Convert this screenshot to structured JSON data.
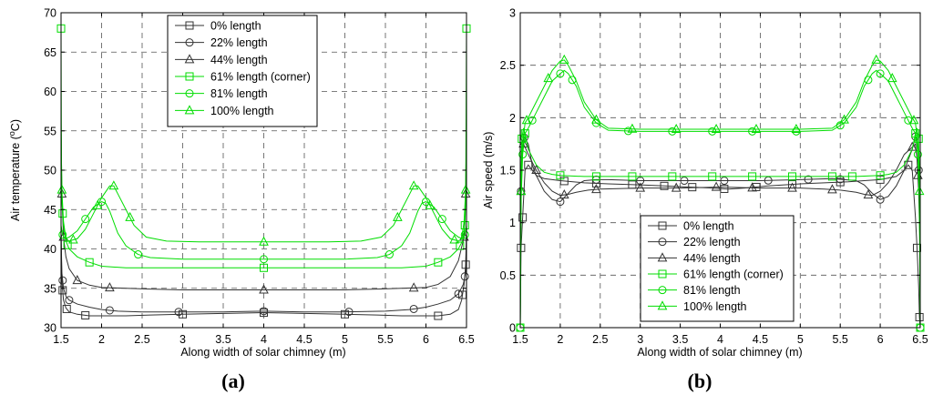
{
  "colors": {
    "black_series": "#333333",
    "green_series": "#00dd00",
    "grid": "#555555"
  },
  "chart_data": [
    {
      "type": "line",
      "panel_label": "(a)",
      "xlabel": "Along width of solar chimney (m)",
      "ylabel": "Air temperature (",
      "ylabel_unit_sup": "o",
      "ylabel_unit_tail": "C)",
      "xlim": [
        1.5,
        6.5
      ],
      "ylim": [
        30,
        70
      ],
      "xticks": [
        "1.5",
        "2",
        "2.5",
        "3",
        "3.5",
        "4",
        "4.5",
        "5",
        "5.5",
        "6",
        "6.5"
      ],
      "yticks": [
        "30",
        "35",
        "40",
        "45",
        "50",
        "55",
        "60",
        "65",
        "70"
      ],
      "grid": true,
      "legend_position": "top-center",
      "series": [
        {
          "name": "0% length",
          "color": "black",
          "marker": "square",
          "x": [
            1.5,
            1.51,
            1.53,
            1.56,
            1.6,
            1.7,
            1.85,
            2.0,
            2.3,
            2.6,
            3.0,
            3.5,
            4.0,
            4.5,
            5.0,
            5.4,
            5.7,
            6.0,
            6.15,
            6.3,
            6.4,
            6.44,
            6.47,
            6.49,
            6.5
          ],
          "y": [
            42,
            36,
            33.5,
            32.5,
            32,
            31.7,
            31.5,
            31.5,
            31.5,
            31.6,
            31.7,
            31.8,
            31.9,
            31.8,
            31.7,
            31.6,
            31.5,
            31.5,
            31.5,
            31.7,
            32.3,
            33.5,
            35.5,
            38,
            42
          ],
          "markers_x": [
            1.52,
            1.57,
            1.8,
            3.0,
            4.0,
            5.0,
            6.15,
            6.45,
            6.49
          ]
        },
        {
          "name": "22% length",
          "color": "black",
          "marker": "circle",
          "x": [
            1.5,
            1.51,
            1.53,
            1.56,
            1.6,
            1.7,
            1.85,
            2.0,
            2.2,
            2.5,
            3.0,
            3.5,
            4.0,
            4.5,
            5.0,
            5.5,
            5.8,
            6.0,
            6.15,
            6.3,
            6.4,
            6.46,
            6.49,
            6.5
          ],
          "y": [
            42,
            37,
            35,
            34,
            33.5,
            33,
            32.6,
            32.3,
            32.1,
            32,
            32,
            32,
            32.1,
            32,
            32,
            32.1,
            32.3,
            32.6,
            33,
            33.5,
            34.3,
            35.5,
            37,
            42
          ],
          "markers_x": [
            1.52,
            1.6,
            2.1,
            2.95,
            4.0,
            5.05,
            5.85,
            6.4,
            6.48
          ]
        },
        {
          "name": "44% length",
          "color": "black",
          "marker": "triangle",
          "x": [
            1.5,
            1.51,
            1.53,
            1.56,
            1.6,
            1.7,
            1.85,
            2.0,
            2.3,
            2.6,
            3.0,
            3.5,
            4.0,
            4.5,
            5.0,
            5.4,
            5.7,
            6.0,
            6.15,
            6.3,
            6.4,
            6.47,
            6.49,
            6.5
          ],
          "y": [
            56,
            47,
            41.5,
            39,
            37.5,
            36,
            35.4,
            35.1,
            35,
            34.9,
            34.8,
            34.8,
            34.8,
            34.8,
            34.8,
            34.9,
            35,
            35.1,
            35.5,
            36.5,
            38.5,
            41.5,
            47,
            56
          ],
          "markers_x": [
            1.51,
            1.53,
            1.7,
            2.1,
            4.0,
            5.85,
            6.47,
            6.49
          ]
        },
        {
          "name": "61% length (corner)",
          "color": "green",
          "marker": "square",
          "x": [
            1.5,
            1.505,
            1.51,
            1.53,
            1.56,
            1.6,
            1.7,
            1.85,
            2.0,
            2.3,
            2.6,
            3.0,
            3.5,
            4.0,
            4.5,
            5.0,
            5.4,
            5.7,
            6.0,
            6.15,
            6.3,
            6.4,
            6.45,
            6.48,
            6.49,
            6.5
          ],
          "y": [
            68,
            51,
            46,
            43,
            41,
            40,
            39,
            38.3,
            37.8,
            37.6,
            37.6,
            37.6,
            37.6,
            37.6,
            37.6,
            37.6,
            37.6,
            37.6,
            37.8,
            38.3,
            39,
            40,
            41,
            43,
            46,
            68
          ],
          "markers_x": [
            1.5,
            1.52,
            1.58,
            1.85,
            4.0,
            6.15,
            6.42,
            6.48,
            6.5
          ]
        },
        {
          "name": "81% length",
          "color": "green",
          "marker": "circle",
          "x": [
            1.5,
            1.52,
            1.55,
            1.6,
            1.7,
            1.8,
            1.9,
            2.0,
            2.05,
            2.1,
            2.2,
            2.3,
            2.45,
            2.6,
            3.0,
            3.5,
            4.0,
            4.5,
            5.0,
            5.4,
            5.55,
            5.7,
            5.8,
            5.9,
            5.95,
            6.0,
            6.1,
            6.2,
            6.3,
            6.4,
            6.45,
            6.48,
            6.5
          ],
          "y": [
            43,
            41.8,
            41.3,
            41.5,
            42.3,
            43.8,
            45.3,
            46,
            45.8,
            44.8,
            42,
            40.4,
            39.3,
            38.9,
            38.7,
            38.7,
            38.7,
            38.7,
            38.7,
            38.9,
            39.3,
            40.4,
            42,
            44.8,
            45.8,
            46,
            45.3,
            43.8,
            42.3,
            41.5,
            41.3,
            41.8,
            43
          ],
          "markers_x": [
            1.52,
            1.8,
            2.0,
            2.45,
            4.0,
            5.55,
            6.0,
            6.2,
            6.48
          ]
        },
        {
          "name": "100% length",
          "color": "green",
          "marker": "triangle",
          "x": [
            1.5,
            1.51,
            1.53,
            1.56,
            1.6,
            1.7,
            1.8,
            1.9,
            2.0,
            2.1,
            2.15,
            2.2,
            2.3,
            2.4,
            2.55,
            2.8,
            3.2,
            3.6,
            4.0,
            4.4,
            4.8,
            5.2,
            5.45,
            5.6,
            5.7,
            5.8,
            5.85,
            5.9,
            6.0,
            6.1,
            6.2,
            6.3,
            6.4,
            6.44,
            6.47,
            6.49,
            6.5
          ],
          "y": [
            55,
            47.5,
            43.5,
            41.3,
            41,
            41.3,
            42.5,
            44.5,
            46.5,
            48,
            48,
            47,
            45,
            43,
            41.5,
            41,
            40.9,
            40.9,
            40.9,
            40.9,
            40.9,
            41,
            41.5,
            43,
            45,
            47,
            48,
            48,
            46.5,
            44.5,
            42.5,
            41.3,
            41,
            41.3,
            43.5,
            47.5,
            55
          ],
          "markers_x": [
            1.51,
            1.65,
            1.95,
            2.15,
            2.35,
            4.0,
            5.65,
            5.85,
            6.05,
            6.35,
            6.49
          ]
        }
      ]
    },
    {
      "type": "line",
      "panel_label": "(b)",
      "xlabel": "Along width of solar chimney (m)",
      "ylabel": "Air speed (m/s)",
      "xlim": [
        1.5,
        6.5
      ],
      "ylim": [
        0,
        3
      ],
      "xticks": [
        "1.5",
        "2",
        "2.5",
        "3",
        "3.5",
        "4",
        "4.5",
        "5",
        "5.5",
        "6",
        "6.5"
      ],
      "yticks": [
        "0",
        "0.5",
        "1",
        "1.5",
        "2",
        "2.5",
        "3"
      ],
      "grid": true,
      "legend_position": "bottom-center",
      "series": [
        {
          "name": "0% length",
          "color": "black",
          "marker": "square",
          "x": [
            1.5,
            1.51,
            1.53,
            1.56,
            1.6,
            1.65,
            1.7,
            1.8,
            1.9,
            2.0,
            2.3,
            2.6,
            3.0,
            3.3,
            3.6,
            3.9,
            4.1,
            4.3,
            4.6,
            5.0,
            5.3,
            5.6,
            5.8,
            6.0,
            6.2,
            6.3,
            6.35,
            6.4,
            6.44,
            6.46,
            6.48,
            6.49,
            6.5
          ],
          "y": [
            0,
            0.76,
            1.05,
            1.5,
            1.55,
            1.5,
            1.45,
            1.42,
            1.41,
            1.4,
            1.38,
            1.37,
            1.36,
            1.35,
            1.34,
            1.33,
            1.32,
            1.33,
            1.35,
            1.37,
            1.38,
            1.39,
            1.4,
            1.41,
            1.44,
            1.5,
            1.55,
            1.5,
            1.05,
            0.76,
            0.4,
            0.1,
            0
          ],
          "markers_x": [
            1.5,
            1.51,
            1.53,
            1.6,
            2.05,
            2.45,
            2.9,
            3.3,
            3.65,
            4.05,
            4.45,
            4.9,
            5.5,
            6.0,
            6.35,
            6.46,
            6.49
          ]
        },
        {
          "name": "22% length",
          "color": "black",
          "marker": "circle",
          "x": [
            1.5,
            1.51,
            1.52,
            1.54,
            1.56,
            1.6,
            1.65,
            1.7,
            1.8,
            1.9,
            2.0,
            2.1,
            2.2,
            2.3,
            2.45,
            2.6,
            3.0,
            3.5,
            4.0,
            4.5,
            5.0,
            5.4,
            5.7,
            5.8,
            5.9,
            6.0,
            6.1,
            6.2,
            6.3,
            6.4,
            6.44,
            6.46,
            6.48,
            6.49,
            6.5
          ],
          "y": [
            0.75,
            1.3,
            1.65,
            1.82,
            1.8,
            1.75,
            1.55,
            1.45,
            1.3,
            1.22,
            1.2,
            1.28,
            1.36,
            1.4,
            1.41,
            1.41,
            1.4,
            1.4,
            1.4,
            1.4,
            1.41,
            1.42,
            1.4,
            1.36,
            1.28,
            1.22,
            1.25,
            1.35,
            1.5,
            1.7,
            1.82,
            1.8,
            1.5,
            1.2,
            0.75
          ],
          "markers_x": [
            1.51,
            1.55,
            2.0,
            2.45,
            3.0,
            3.55,
            4.05,
            4.6,
            5.1,
            5.5,
            6.0,
            6.44,
            6.48
          ]
        },
        {
          "name": "44% length",
          "color": "black",
          "marker": "triangle",
          "x": [
            1.5,
            1.51,
            1.52,
            1.54,
            1.56,
            1.6,
            1.7,
            1.8,
            1.9,
            2.0,
            2.1,
            2.2,
            2.35,
            2.5,
            3.0,
            3.5,
            4.0,
            4.5,
            5.0,
            5.3,
            5.5,
            5.7,
            5.8,
            5.9,
            6.0,
            6.1,
            6.2,
            6.3,
            6.4,
            6.44,
            6.46,
            6.48,
            6.49,
            6.5
          ],
          "y": [
            0.75,
            1.3,
            1.6,
            1.75,
            1.72,
            1.65,
            1.5,
            1.38,
            1.3,
            1.26,
            1.27,
            1.29,
            1.31,
            1.32,
            1.33,
            1.33,
            1.34,
            1.33,
            1.33,
            1.32,
            1.31,
            1.29,
            1.27,
            1.26,
            1.3,
            1.38,
            1.5,
            1.65,
            1.72,
            1.75,
            1.6,
            1.3,
            1.0,
            0.75
          ],
          "markers_x": [
            1.51,
            1.54,
            1.7,
            2.05,
            2.45,
            3.0,
            3.45,
            3.95,
            4.4,
            4.9,
            5.4,
            5.85,
            6.4,
            6.47
          ]
        },
        {
          "name": "61% length (corner)",
          "color": "green",
          "marker": "square",
          "x": [
            1.5,
            1.505,
            1.51,
            1.52,
            1.54,
            1.56,
            1.6,
            1.7,
            1.8,
            1.9,
            2.0,
            2.3,
            2.6,
            3.0,
            3.5,
            4.0,
            4.5,
            5.0,
            5.4,
            5.7,
            6.0,
            6.1,
            6.2,
            6.3,
            6.4,
            6.44,
            6.46,
            6.48,
            6.49,
            6.495,
            6.5
          ],
          "y": [
            0,
            0.75,
            1.5,
            1.8,
            1.9,
            1.85,
            1.7,
            1.55,
            1.48,
            1.46,
            1.45,
            1.44,
            1.44,
            1.44,
            1.44,
            1.44,
            1.44,
            1.44,
            1.44,
            1.44,
            1.45,
            1.46,
            1.48,
            1.55,
            1.7,
            1.85,
            1.9,
            1.8,
            1.5,
            0.75,
            0
          ],
          "markers_x": [
            1.5,
            1.52,
            1.56,
            2.0,
            2.45,
            2.9,
            3.4,
            3.9,
            4.4,
            4.9,
            5.4,
            5.65,
            6.0,
            6.44,
            6.48,
            6.5
          ]
        },
        {
          "name": "81% length",
          "color": "green",
          "marker": "circle",
          "x": [
            1.5,
            1.51,
            1.53,
            1.56,
            1.6,
            1.7,
            1.8,
            1.9,
            2.0,
            2.05,
            2.1,
            2.2,
            2.3,
            2.45,
            2.6,
            3.0,
            3.5,
            4.0,
            4.5,
            5.0,
            5.4,
            5.55,
            5.7,
            5.8,
            5.9,
            5.95,
            6.0,
            6.1,
            6.2,
            6.3,
            6.4,
            6.44,
            6.47,
            6.49,
            6.5
          ],
          "y": [
            0,
            1.2,
            1.65,
            1.85,
            1.9,
            2.05,
            2.2,
            2.35,
            2.42,
            2.45,
            2.42,
            2.3,
            2.1,
            1.95,
            1.88,
            1.87,
            1.87,
            1.87,
            1.87,
            1.87,
            1.88,
            1.95,
            2.1,
            2.3,
            2.42,
            2.45,
            2.42,
            2.35,
            2.2,
            2.05,
            1.9,
            1.85,
            1.65,
            1.2,
            0
          ],
          "markers_x": [
            1.5,
            1.53,
            1.65,
            2.0,
            2.15,
            2.45,
            2.85,
            3.4,
            3.9,
            4.4,
            4.95,
            5.5,
            5.85,
            6.0,
            6.35,
            6.47,
            6.5
          ]
        },
        {
          "name": "100% length",
          "color": "green",
          "marker": "triangle",
          "x": [
            1.5,
            1.51,
            1.53,
            1.56,
            1.6,
            1.7,
            1.8,
            1.9,
            2.0,
            2.05,
            2.1,
            2.2,
            2.3,
            2.45,
            2.6,
            3.0,
            3.5,
            4.0,
            4.5,
            5.0,
            5.4,
            5.55,
            5.7,
            5.8,
            5.9,
            5.95,
            6.0,
            6.1,
            6.2,
            6.3,
            6.4,
            6.44,
            6.47,
            6.49,
            6.5
          ],
          "y": [
            0,
            1.3,
            1.75,
            1.95,
            2.0,
            2.15,
            2.3,
            2.45,
            2.54,
            2.55,
            2.5,
            2.35,
            2.15,
            1.98,
            1.9,
            1.89,
            1.89,
            1.89,
            1.89,
            1.89,
            1.9,
            1.98,
            2.15,
            2.35,
            2.5,
            2.55,
            2.54,
            2.45,
            2.3,
            2.15,
            2.0,
            1.95,
            1.75,
            1.3,
            0
          ],
          "markers_x": [
            1.51,
            1.58,
            1.85,
            2.05,
            2.45,
            2.9,
            3.45,
            3.95,
            4.45,
            4.95,
            5.55,
            5.95,
            6.15,
            6.42,
            6.49
          ]
        }
      ]
    }
  ]
}
